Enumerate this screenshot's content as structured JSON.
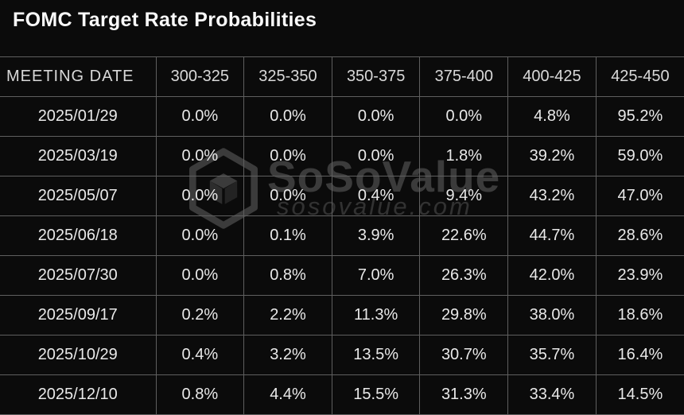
{
  "title": "FOMC Target Rate Probabilities",
  "watermark": {
    "brand": "SoSoValue",
    "domain": "sosovalue.com",
    "logo_icon": "sosovalue-cube-logo"
  },
  "colors": {
    "background": "#0b0b0b",
    "grid_border": "#5f5f5f",
    "text": "#e9e9e9",
    "highlight_text": "#e5522f",
    "watermark_gray": "#4a4a4a"
  },
  "chart_data": {
    "type": "table",
    "title": "FOMC Target Rate Probabilities",
    "columns": [
      "MEETING DATE",
      "300-325",
      "325-350",
      "350-375",
      "375-400",
      "400-425",
      "425-450"
    ],
    "rows": [
      {
        "date": "2025/01/29",
        "values": [
          "0.0%",
          "0.0%",
          "0.0%",
          "0.0%",
          "4.8%",
          "95.2%"
        ],
        "highlight_index": 5
      },
      {
        "date": "2025/03/19",
        "values": [
          "0.0%",
          "0.0%",
          "0.0%",
          "1.8%",
          "39.2%",
          "59.0%"
        ],
        "highlight_index": 5
      },
      {
        "date": "2025/05/07",
        "values": [
          "0.0%",
          "0.0%",
          "0.4%",
          "9.4%",
          "43.2%",
          "47.0%"
        ],
        "highlight_index": 5
      },
      {
        "date": "2025/06/18",
        "values": [
          "0.0%",
          "0.1%",
          "3.9%",
          "22.6%",
          "44.7%",
          "28.6%"
        ],
        "highlight_index": 4
      },
      {
        "date": "2025/07/30",
        "values": [
          "0.0%",
          "0.8%",
          "7.0%",
          "26.3%",
          "42.0%",
          "23.9%"
        ],
        "highlight_index": 4
      },
      {
        "date": "2025/09/17",
        "values": [
          "0.2%",
          "2.2%",
          "11.3%",
          "29.8%",
          "38.0%",
          "18.6%"
        ],
        "highlight_index": 4
      },
      {
        "date": "2025/10/29",
        "values": [
          "0.4%",
          "3.2%",
          "13.5%",
          "30.7%",
          "35.7%",
          "16.4%"
        ],
        "highlight_index": 4
      },
      {
        "date": "2025/12/10",
        "values": [
          "0.8%",
          "4.4%",
          "15.5%",
          "31.3%",
          "33.4%",
          "14.5%"
        ],
        "highlight_index": 4
      }
    ]
  }
}
